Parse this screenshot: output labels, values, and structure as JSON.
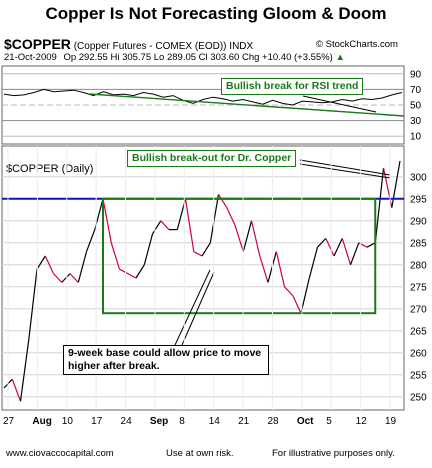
{
  "page": {
    "title": "Copper Is Not Forecasting Gloom & Doom",
    "symbol": "$COPPER",
    "description": "(Copper Futures - COMEX (EOD))",
    "exchange": "INDX",
    "copyright": "© StockCharts.com",
    "date": "21-Oct-2009",
    "quote": "Op 292.55  Hi 305.75  Lo 289.05  Cl 303.60  Chg +10.40 (+3.55%)",
    "quote_arrow": "▲",
    "panel_label": "$COPPER (Daily)",
    "footer_left": "www.ciovaccocapital.com",
    "footer_mid": "Use at own risk.",
    "footer_right": "For illustrative purposes only."
  },
  "colors": {
    "up": "#000000",
    "down": "#d0003a",
    "blue_line": "#1010cc",
    "green": "#1a7a1a",
    "rsi_fill": "#9ab89a"
  },
  "chart_data": [
    {
      "type": "line",
      "panel": "RSI",
      "y_ticks": [
        10,
        30,
        50,
        70,
        90
      ],
      "ylim": [
        0,
        100
      ],
      "values": [
        64,
        62,
        63,
        66,
        70,
        67,
        68,
        69,
        66,
        62,
        67,
        63,
        64,
        62,
        66,
        64,
        60,
        62,
        56,
        52,
        57,
        60,
        58,
        55,
        57,
        54,
        51,
        56,
        52,
        50,
        55,
        54,
        53,
        54,
        57,
        55,
        58,
        57,
        59,
        63,
        66
      ],
      "annotation": "Bullish break for RSI trend"
    },
    {
      "type": "line",
      "panel": "price",
      "x_tick_labels": [
        "27",
        "Aug",
        "10",
        "17",
        "24",
        "Sep",
        "8",
        "14",
        "21",
        "28",
        "Oct",
        "5",
        "12",
        "19"
      ],
      "y_ticks": [
        250,
        255,
        260,
        265,
        270,
        275,
        280,
        285,
        290,
        295,
        300
      ],
      "ylim": [
        247,
        307
      ],
      "values": [
        252,
        254,
        249,
        263,
        279,
        282,
        278,
        276,
        278,
        276,
        283,
        288,
        295,
        285,
        279,
        278,
        277,
        280,
        287,
        290,
        288,
        288,
        295,
        283,
        282,
        285,
        296,
        293,
        289,
        283,
        290,
        282,
        276,
        283,
        275,
        273,
        269,
        277,
        284,
        286,
        282,
        286,
        280,
        285,
        284,
        285,
        302,
        293,
        303.6
      ],
      "resistance": 295,
      "annotations": [
        "Bullish break-out for Dr. Copper",
        "9-week base could allow price to move higher after break."
      ]
    }
  ]
}
